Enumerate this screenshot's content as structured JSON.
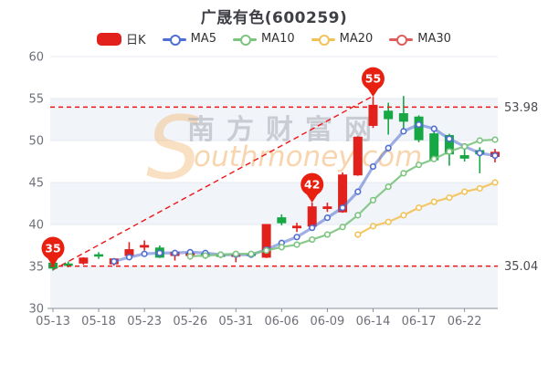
{
  "title": "广晟有色(600259)",
  "legend": [
    {
      "label": "日K",
      "type": "candle",
      "color": "#e2201c"
    },
    {
      "label": "MA5",
      "type": "line",
      "color": "#4f6fd0"
    },
    {
      "label": "MA10",
      "type": "line",
      "color": "#7cc47f"
    },
    {
      "label": "MA20",
      "type": "line",
      "color": "#f3c257"
    },
    {
      "label": "MA30",
      "type": "line",
      "color": "#e05c5c"
    }
  ],
  "watermark": {
    "cn": "南方财富网",
    "en": "outhmoney.com",
    "initial": "S"
  },
  "chart_data": {
    "type": "candlestick",
    "title": "广晟有色(600259)",
    "ylim": [
      30,
      60
    ],
    "y_ticks": [
      30,
      35,
      40,
      45,
      50,
      55,
      60
    ],
    "shaded_bands": [
      [
        30,
        35
      ],
      [
        40,
        45
      ],
      [
        50,
        55
      ]
    ],
    "x_labels": [
      "05-13",
      "05-18",
      "05-23",
      "05-26",
      "05-31",
      "06-06",
      "06-09",
      "06-14",
      "06-17",
      "06-22"
    ],
    "x_label_step": 3,
    "up_color": "#e2201c",
    "down_color": "#17a744",
    "candles_note": "each candle = [open, close, low, high]",
    "candles": [
      [
        35.4,
        34.8,
        34.5,
        35.5
      ],
      [
        35.3,
        35.2,
        34.9,
        35.6
      ],
      [
        35.4,
        36.0,
        35.2,
        36.1
      ],
      [
        36.4,
        36.3,
        35.9,
        36.7
      ],
      [
        35.3,
        35.9,
        35.1,
        36.0
      ],
      [
        36.3,
        37.0,
        36.2,
        37.9
      ],
      [
        37.3,
        37.5,
        36.9,
        38.1
      ],
      [
        37.2,
        36.1,
        36.0,
        37.5
      ],
      [
        36.3,
        36.7,
        35.7,
        36.8
      ],
      [
        36.3,
        36.6,
        35.8,
        36.8
      ],
      [
        36.5,
        36.2,
        35.9,
        36.6
      ],
      [
        36.4,
        36.2,
        36.0,
        36.6
      ],
      [
        36.2,
        36.5,
        35.5,
        36.6
      ],
      [
        36.5,
        36.3,
        36.1,
        36.7
      ],
      [
        36.1,
        40.0,
        36.0,
        40.0
      ],
      [
        40.8,
        40.2,
        39.9,
        41.2
      ],
      [
        39.6,
        39.8,
        39.1,
        40.2
      ],
      [
        39.8,
        42.1,
        39.7,
        42.6
      ],
      [
        41.9,
        42.1,
        41.5,
        42.6
      ],
      [
        41.5,
        45.9,
        41.4,
        46.2
      ],
      [
        45.9,
        50.4,
        45.8,
        50.5
      ],
      [
        51.8,
        54.2,
        51.5,
        55.2
      ],
      [
        53.5,
        52.6,
        50.7,
        54.5
      ],
      [
        53.2,
        52.3,
        51.3,
        55.3
      ],
      [
        52.8,
        50.1,
        49.8,
        53.0
      ],
      [
        50.8,
        47.7,
        47.5,
        51.2
      ],
      [
        50.6,
        48.4,
        47.0,
        50.8
      ],
      [
        48.2,
        47.9,
        47.5,
        49.6
      ],
      [
        48.8,
        48.4,
        46.1,
        49.2
      ],
      [
        48.1,
        48.6,
        47.4,
        49.0
      ]
    ],
    "series": [
      {
        "name": "MA5",
        "color": "#4f6fd0",
        "width": 3.2,
        "opacity": 0.55,
        "start_index": 4,
        "values": [
          35.6,
          36.1,
          36.5,
          36.6,
          36.6,
          36.7,
          36.6,
          36.4,
          36.4,
          36.4,
          37.0,
          37.8,
          38.5,
          39.6,
          40.8,
          42.0,
          43.9,
          46.9,
          49.1,
          51.1,
          51.9,
          51.4,
          50.2,
          49.3,
          48.5,
          48.2
        ]
      },
      {
        "name": "MA10",
        "color": "#7cc47f",
        "width": 2.2,
        "opacity": 0.9,
        "start_index": 9,
        "values": [
          36.2,
          36.3,
          36.4,
          36.5,
          36.5,
          36.9,
          37.3,
          37.6,
          38.2,
          38.8,
          39.7,
          41.1,
          42.9,
          44.5,
          46.1,
          47.1,
          47.8,
          48.7,
          49.3,
          50.0,
          50.1
        ]
      },
      {
        "name": "MA20",
        "color": "#f3c257",
        "width": 2.2,
        "opacity": 0.9,
        "start_index": 20,
        "values": [
          38.8,
          39.8,
          40.3,
          41.1,
          42.0,
          42.7,
          43.2,
          43.9,
          44.3,
          45.0
        ]
      },
      {
        "name": "MA30",
        "color": "#e05c5c",
        "width": 2.2,
        "opacity": 0.9,
        "start_index": 29,
        "values": []
      }
    ],
    "reference_lines": [
      {
        "value": 53.98,
        "label": "53.98"
      },
      {
        "value": 35.04,
        "label": "35.04"
      }
    ],
    "trendline": {
      "from_index": 0,
      "from_value": 34.6,
      "to_index": 21,
      "to_value": 55.3
    },
    "markers": [
      {
        "index": 0,
        "label": "35",
        "value": 35.0
      },
      {
        "index": 17,
        "label": "42",
        "value": 42.6
      },
      {
        "index": 21,
        "label": "55",
        "value": 55.2
      }
    ],
    "marker_color": "#e8200f"
  }
}
